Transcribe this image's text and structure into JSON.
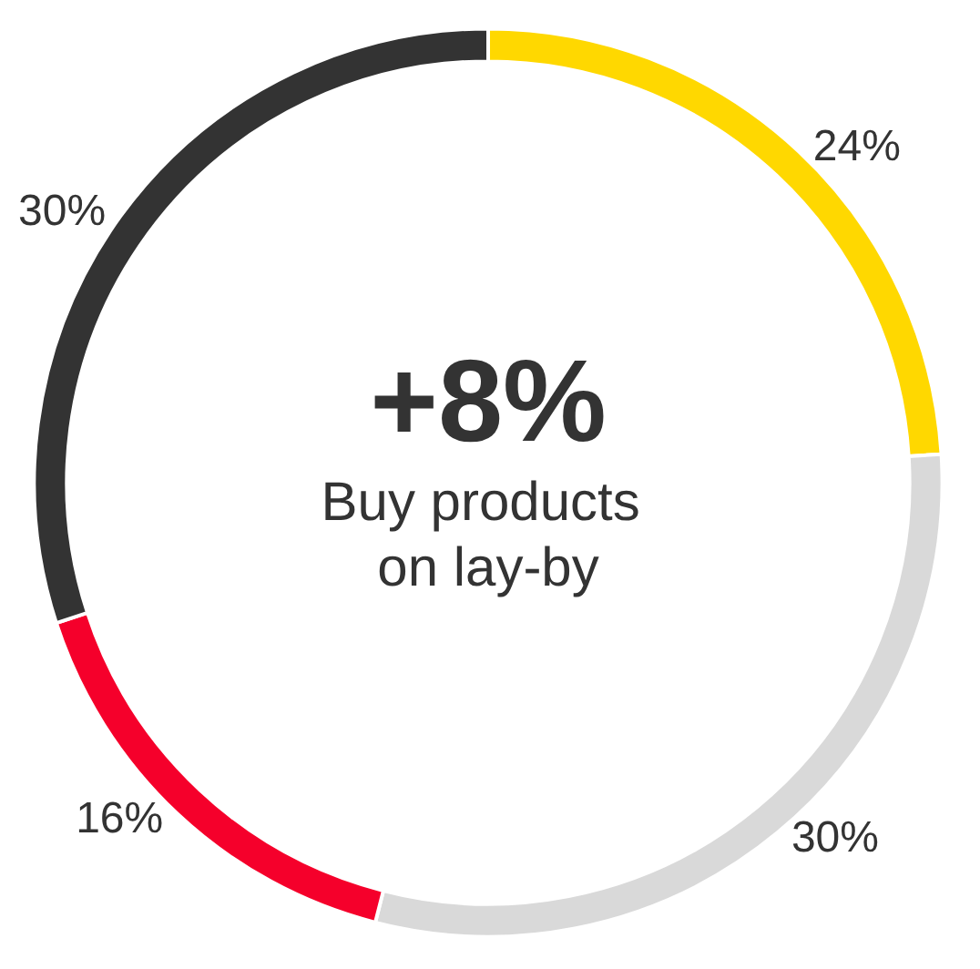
{
  "chart_data": {
    "type": "donut",
    "title": "+8%",
    "subtitle": "Buy products on lay-by",
    "categories": [
      null,
      null,
      null,
      null
    ],
    "values": [
      24,
      30,
      16,
      30
    ],
    "value_labels": [
      "24%",
      "30%",
      "16%",
      "30%"
    ],
    "colors": [
      "#ffd800",
      "#d9d9d9",
      "#f5002b",
      "#333333"
    ]
  }
}
